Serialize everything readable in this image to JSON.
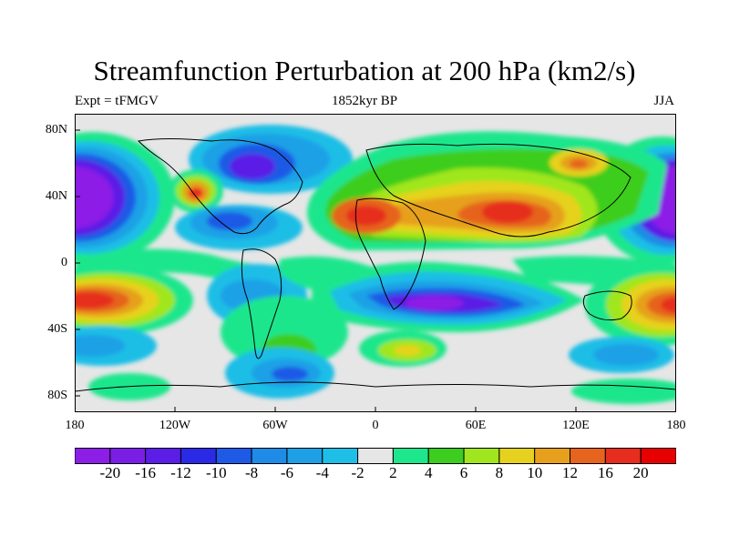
{
  "title": "Streamfunction Perturbation at 200 hPa (km2/s)",
  "left_string": "Expt = tFMGV",
  "center_string": "1852kyr BP",
  "right_string": "JJA",
  "lat_ticks": [
    "80N",
    "40N",
    "0",
    "40S",
    "80S"
  ],
  "lon_ticks": [
    "180",
    "120W",
    "60W",
    "0",
    "60E",
    "120E",
    "180"
  ],
  "colorbar": {
    "labels": [
      "-20",
      "-16",
      "-12",
      "-10",
      "-8",
      "-6",
      "-4",
      "-2",
      "2",
      "4",
      "6",
      "8",
      "10",
      "12",
      "16",
      "20"
    ],
    "colors": [
      "#8c1ee6",
      "#7a1ee6",
      "#5a1ee6",
      "#2a2ae6",
      "#1e5ae6",
      "#1e8ce6",
      "#1ea0e6",
      "#1ebee6",
      "#e6e6e6",
      "#1ee68c",
      "#3ccd1e",
      "#a0e61e",
      "#e6d21e",
      "#e6a01e",
      "#e6641e",
      "#e62d1e",
      "#e60000"
    ]
  },
  "field_colors": {
    "bg": "#e6e6e6",
    "purple": "#8c1ee6",
    "indigo": "#5a1ee6",
    "blue": "#1e5ae6",
    "sky": "#1ea0e6",
    "cyan": "#1ebee6",
    "spring": "#1ee68c",
    "green": "#3ccd1e",
    "lime": "#a0e61e",
    "yellow": "#e6d21e",
    "orange": "#e6a01e",
    "redorange": "#e6641e",
    "red": "#e62d1e"
  }
}
